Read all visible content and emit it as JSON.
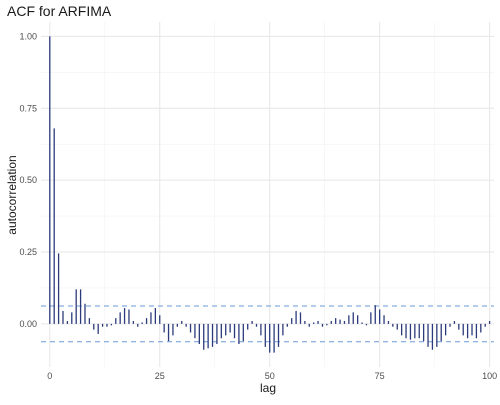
{
  "chart_data": {
    "type": "bar",
    "title": "ACF for ARFIMA",
    "xlabel": "lag",
    "ylabel": "autocorrelation",
    "xlim": [
      -2,
      101
    ],
    "ylim": [
      -0.15,
      1.05
    ],
    "x_ticks": [
      0,
      25,
      50,
      75,
      100
    ],
    "y_ticks": [
      0.0,
      0.25,
      0.5,
      0.75,
      1.0
    ],
    "y_tick_labels": [
      "0.00",
      "0.25",
      "0.50",
      "0.75",
      "1.00"
    ],
    "grid": true,
    "confidence_bound": 0.062,
    "colors": {
      "bars": "#2b3a7a",
      "bounds": "#6a9ad8",
      "grid": "#e6e6e6",
      "text": "#4d4d4d"
    },
    "series": [
      {
        "lags": [
          0,
          1,
          2,
          3,
          4,
          5,
          6,
          7,
          8,
          9,
          10,
          11,
          12,
          13,
          14,
          15,
          16,
          17,
          18,
          19,
          20,
          21,
          22,
          23,
          24,
          25,
          26,
          27,
          28,
          29,
          30,
          31,
          32,
          33,
          34,
          35,
          36,
          37,
          38,
          39,
          40,
          41,
          42,
          43,
          44,
          45,
          46,
          47,
          48,
          49,
          50,
          51,
          52,
          53,
          54,
          55,
          56,
          57,
          58,
          59,
          60,
          61,
          62,
          63,
          64,
          65,
          66,
          67,
          68,
          69,
          70,
          71,
          72,
          73,
          74,
          75,
          76,
          77,
          78,
          79,
          80,
          81,
          82,
          83,
          84,
          85,
          86,
          87,
          88,
          89,
          90,
          91,
          92,
          93,
          94,
          95,
          96,
          97,
          98,
          99,
          100
        ],
        "values": [
          1.0,
          0.68,
          0.245,
          0.045,
          0.01,
          0.04,
          0.12,
          0.12,
          0.07,
          0.02,
          -0.02,
          -0.035,
          -0.01,
          -0.01,
          -0.005,
          0.02,
          0.04,
          0.055,
          0.05,
          0.01,
          -0.01,
          0.005,
          0.02,
          0.04,
          0.055,
          0.03,
          -0.03,
          -0.06,
          -0.04,
          -0.01,
          0.01,
          -0.01,
          -0.03,
          -0.05,
          -0.07,
          -0.09,
          -0.085,
          -0.08,
          -0.07,
          -0.05,
          -0.04,
          -0.03,
          -0.05,
          -0.07,
          -0.06,
          -0.02,
          0.01,
          -0.01,
          -0.04,
          -0.08,
          -0.1,
          -0.1,
          -0.08,
          -0.04,
          -0.01,
          0.02,
          0.045,
          0.04,
          0.01,
          -0.01,
          0.005,
          0.01,
          -0.01,
          -0.005,
          0.01,
          0.02,
          0.015,
          0.01,
          0.03,
          0.04,
          0.03,
          0.005,
          -0.005,
          0.04,
          0.065,
          0.05,
          0.03,
          0.01,
          -0.01,
          -0.02,
          -0.04,
          -0.05,
          -0.055,
          -0.05,
          -0.05,
          -0.06,
          -0.08,
          -0.09,
          -0.08,
          -0.06,
          -0.04,
          -0.01,
          0.01,
          -0.02,
          -0.04,
          -0.05,
          -0.04,
          -0.05,
          -0.03,
          -0.01,
          0.01
        ]
      }
    ]
  }
}
